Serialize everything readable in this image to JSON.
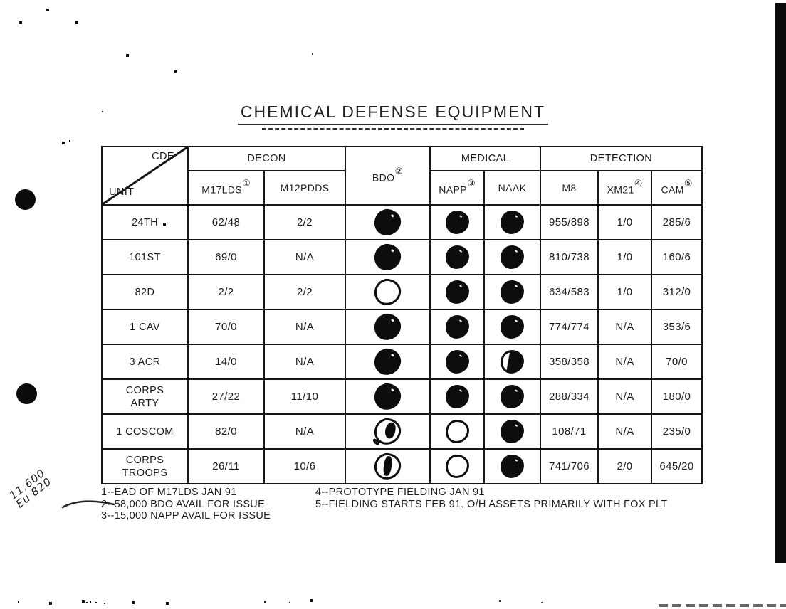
{
  "title": "CHEMICAL DEFENSE EQUIPMENT",
  "table": {
    "corner": {
      "top": "CDE",
      "bottom": "UNIT"
    },
    "groups": {
      "decon": "DECON",
      "medical": "MEDICAL",
      "detection": "DETECTION"
    },
    "columns": {
      "m17lds": {
        "label": "M17LDS",
        "note": "①"
      },
      "m12pdds": {
        "label": "M12PDDS",
        "note": ""
      },
      "bdo": {
        "label": "BDO",
        "note": "②"
      },
      "napp": {
        "label": "NAPP",
        "note": "③"
      },
      "naak": {
        "label": "NAAK",
        "note": ""
      },
      "m8": {
        "label": "M8",
        "note": ""
      },
      "xm21": {
        "label": "XM21",
        "note": "④"
      },
      "cam": {
        "label": "CAM",
        "note": "⑤"
      }
    },
    "rows": [
      {
        "unit": "24TH",
        "m17lds": "62/48",
        "m12pdds": "2/2",
        "bdo": "filled",
        "napp": "filled",
        "naak": "filled",
        "m8": "955/898",
        "xm21": "1/0",
        "cam": "285/6"
      },
      {
        "unit": "101ST",
        "m17lds": "69/0",
        "m12pdds": "N/A",
        "bdo": "filled",
        "napp": "filled",
        "naak": "filled",
        "m8": "810/738",
        "xm21": "1/0",
        "cam": "160/6"
      },
      {
        "unit": "82D",
        "m17lds": "2/2",
        "m12pdds": "2/2",
        "bdo": "empty",
        "napp": "filled",
        "naak": "filled",
        "m8": "634/583",
        "xm21": "1/0",
        "cam": "312/0"
      },
      {
        "unit": "1 CAV",
        "m17lds": "70/0",
        "m12pdds": "N/A",
        "bdo": "filled",
        "napp": "filled",
        "naak": "filled",
        "m8": "774/774",
        "xm21": "N/A",
        "cam": "353/6"
      },
      {
        "unit": "3 ACR",
        "m17lds": "14/0",
        "m12pdds": "N/A",
        "bdo": "filled",
        "napp": "filled",
        "naak": "half",
        "m8": "358/358",
        "xm21": "N/A",
        "cam": "70/0"
      },
      {
        "unit": "CORPS\nARTY",
        "m17lds": "27/22",
        "m12pdds": "11/10",
        "bdo": "filled",
        "napp": "filled",
        "naak": "filled",
        "m8": "288/334",
        "xm21": "N/A",
        "cam": "180/0"
      },
      {
        "unit": "1 COSCOM",
        "m17lds": "82/0",
        "m12pdds": "N/A",
        "bdo": "partial-right",
        "napp": "empty",
        "naak": "filled",
        "m8": "108/71",
        "xm21": "N/A",
        "cam": "235/0"
      },
      {
        "unit": "CORPS\nTROOPS",
        "m17lds": "26/11",
        "m12pdds": "10/6",
        "bdo": "partial-center",
        "napp": "empty",
        "naak": "filled",
        "m8": "741/706",
        "xm21": "2/0",
        "cam": "645/20"
      }
    ]
  },
  "footnotes": {
    "left": [
      "1--EAD OF M17LDS JAN 91",
      "2--58,000 BDO AVAIL FOR ISSUE",
      "3--15,000 NAPP AVAIL FOR ISSUE"
    ],
    "right": [
      "4--PROTOTYPE FIELDING JAN 91",
      "5--FIELDING STARTS FEB 91. O/H ASSETS PRIMARILY WITH FOX PLT"
    ]
  },
  "handwriting": {
    "line1": "11,600",
    "line2": "Eu 820"
  }
}
